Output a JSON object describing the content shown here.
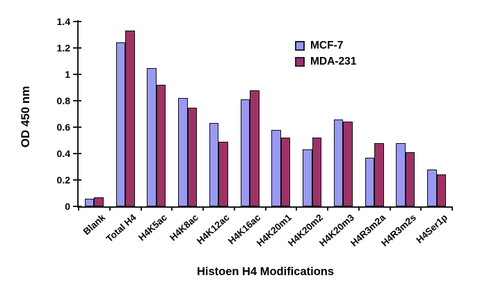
{
  "chart_data": {
    "type": "bar",
    "title": "",
    "xlabel": "Histoen H4 Modifications",
    "ylabel": "OD 450 nm",
    "categories": [
      "Blank",
      "Total H4",
      "H4K5ac",
      "H4K8ac",
      "H4K12ac",
      "H4K16ac",
      "H4K20m1",
      "H4K20m2",
      "H4K20m3",
      "H4R3m2a",
      "H4R3m2s",
      "H4Ser1p"
    ],
    "series": [
      {
        "name": "MCF-7",
        "color": "#9999F0",
        "values": [
          0.06,
          1.24,
          1.05,
          0.82,
          0.63,
          0.81,
          0.58,
          0.43,
          0.66,
          0.37,
          0.48,
          0.28
        ]
      },
      {
        "name": "MDA-231",
        "color": "#9D3365",
        "values": [
          0.07,
          1.33,
          0.92,
          0.75,
          0.49,
          0.88,
          0.52,
          0.52,
          0.64,
          0.48,
          0.41,
          0.24
        ]
      }
    ],
    "ylim": [
      0,
      1.4
    ],
    "yticks": [
      0,
      0.2,
      0.4,
      0.6,
      0.8,
      1,
      1.2,
      1.4
    ],
    "grid": false,
    "legend_position": "upper right inside",
    "bar_border_color": "#0d0d19",
    "axis_color": "#17171d",
    "background_color": "#ffffff"
  }
}
